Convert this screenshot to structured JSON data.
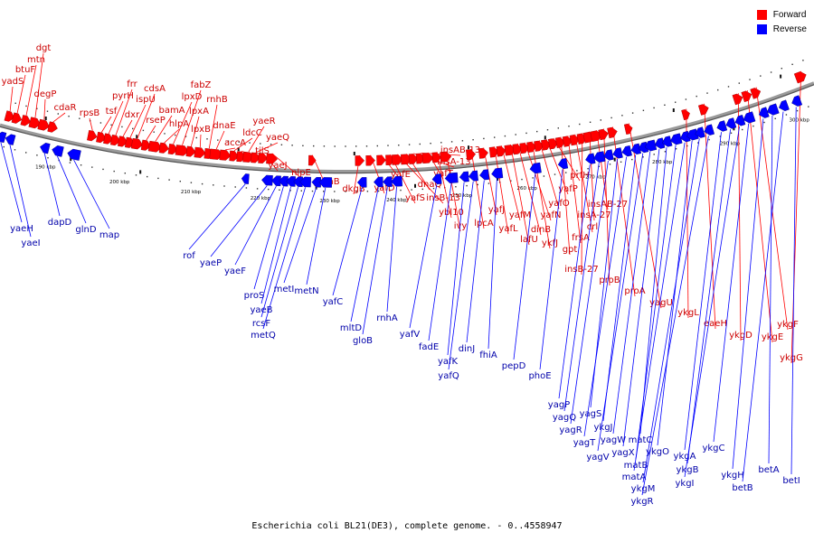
{
  "legend": {
    "forward_label": "Forward",
    "reverse_label": "Reverse",
    "forward_color": "#ff0000",
    "reverse_color": "#0000ff"
  },
  "caption": "Escherichia coli BL21(DE3), complete genome. - 0..4558947",
  "colors": {
    "label_forward": "#cc0000",
    "label_reverse": "#0000aa",
    "backbone": "#808080"
  },
  "scale_ticks": [
    "190 kbp",
    "200 kbp",
    "210 kbp",
    "220 kbp",
    "230 kbp",
    "240 kbp",
    "250 kbp",
    "260 kbp",
    "270 kbp",
    "280 kbp",
    "290 kbp",
    "300 kbp"
  ],
  "forward_genes": [
    "yadS",
    "btuF",
    "mtn",
    "dgt",
    "degP",
    "cdaR",
    "rpsB",
    "tsf",
    "pyrH",
    "frr",
    "dxr",
    "ispU",
    "cdsA",
    "rseP",
    "bamA",
    "hlpA",
    "lpxD",
    "fabZ",
    "lpxA",
    "lpxB",
    "rnhB",
    "dnaE",
    "accA",
    "ldcC",
    "tilS",
    "yaeR",
    "yaeQ",
    "yaeJ",
    "nlpE",
    "gmhB",
    "dkgB",
    "yafD",
    "yafE",
    "yafS",
    "insB-13",
    "dnaQ",
    "insA-13",
    "insAB-13",
    "yafT",
    "ybl10",
    "ivy",
    "lpcA",
    "yafJ",
    "yafL",
    "yafM",
    "lafU",
    "dinB",
    "yafN",
    "ykfJ",
    "yafO",
    "yafP",
    "prfH",
    "gpt",
    "frsA",
    "crl",
    "insB-27",
    "insA-27",
    "insAB-27",
    "proB",
    "proA",
    "yagU",
    "ykgL",
    "eaeH",
    "ykgD",
    "ykgE",
    "ykgF",
    "ykgG"
  ],
  "reverse_genes": [
    "yaeH",
    "yaeI",
    "dapD",
    "glnD",
    "map",
    "rof",
    "yaeP",
    "yaeF",
    "proS",
    "yaeB",
    "rcsF",
    "metQ",
    "metI",
    "metN",
    "yafC",
    "mltD",
    "gloB",
    "rnhA",
    "yafV",
    "fadE",
    "yafK",
    "yafQ",
    "dinJ",
    "fhiA",
    "pepD",
    "phoE",
    "yagP",
    "yagQ",
    "yagR",
    "yagS",
    "yagT",
    "ykgJ",
    "yagV",
    "yagW",
    "yagX",
    "matC",
    "matB",
    "matA",
    "ykgO",
    "ykgM",
    "ykgR",
    "ykgA",
    "ykgB",
    "ykgI",
    "ykgC",
    "ykgH",
    "betA",
    "betB",
    "betI"
  ]
}
